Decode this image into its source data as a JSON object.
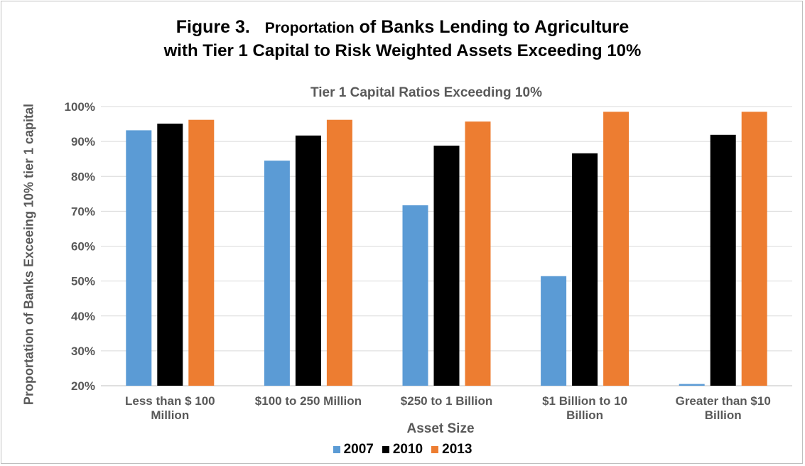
{
  "figure": {
    "title_prefix": "Figure 3.   ",
    "title_small": "Proportation",
    "title_line1_rest": " of Banks Lending to Agriculture",
    "title_line2": "with Tier 1 Capital to Risk Weighted Assets Exceeding 10%"
  },
  "chart_data": {
    "type": "bar",
    "title": "Tier 1 Capital Ratios Exceeding 10%",
    "xlabel": "Asset Size",
    "ylabel": "Proportation of Banks Exceeing 10% tier 1 capital",
    "categories": [
      [
        "Less than $ 100",
        "Million"
      ],
      [
        "$100 to 250 Million"
      ],
      [
        "$250 to 1 Billion"
      ],
      [
        "$1 Billion to 10",
        "Billion"
      ],
      [
        "Greater than $10",
        "Billion"
      ]
    ],
    "series": [
      {
        "name": "2007",
        "color": "#5b9bd5",
        "values": [
          93.2,
          84.5,
          71.7,
          51.4,
          20.5
        ]
      },
      {
        "name": "2010",
        "color": "#000000",
        "values": [
          95.1,
          91.7,
          88.8,
          86.6,
          91.9
        ]
      },
      {
        "name": "2013",
        "color": "#ed7d31",
        "values": [
          96.2,
          96.2,
          95.7,
          98.5,
          98.5
        ]
      }
    ],
    "ylim": [
      20,
      100
    ],
    "yticks": [
      "20%",
      "30%",
      "40%",
      "50%",
      "60%",
      "70%",
      "80%",
      "90%",
      "100%"
    ],
    "grid": true,
    "legend_position": "bottom"
  }
}
